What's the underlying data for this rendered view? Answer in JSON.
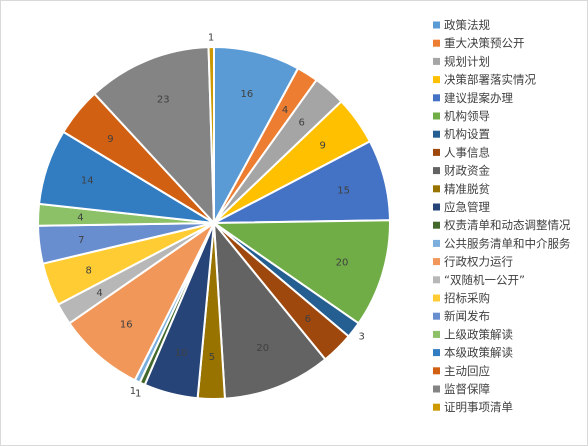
{
  "chart_data": {
    "type": "pie",
    "title": "",
    "legend_position": "right",
    "slices": [
      {
        "name": "政策法规",
        "value": 16,
        "color": "#5B9BD5"
      },
      {
        "name": "重大决策预公开",
        "value": 4,
        "color": "#ED7D31"
      },
      {
        "name": "规划计划",
        "value": 6,
        "color": "#A5A5A5"
      },
      {
        "name": "决策部署落实情况",
        "value": 9,
        "color": "#FFC000"
      },
      {
        "name": "建议提案办理",
        "value": 15,
        "color": "#4472C4"
      },
      {
        "name": "机构领导",
        "value": 20,
        "color": "#70AD47"
      },
      {
        "name": "机构设置",
        "value": 3,
        "color": "#255E91"
      },
      {
        "name": "人事信息",
        "value": 6,
        "color": "#9E480E"
      },
      {
        "name": "财政资金",
        "value": 20,
        "color": "#636363"
      },
      {
        "name": "精准脱贫",
        "value": 5,
        "color": "#997300"
      },
      {
        "name": "应急管理",
        "value": 10,
        "color": "#264478"
      },
      {
        "name": "权责清单和动态调整情况",
        "value": 1,
        "color": "#43682B"
      },
      {
        "name": "公共服务清单和中介服务",
        "value": 1,
        "color": "#7CAFDD"
      },
      {
        "name": "行政权力运行",
        "value": 16,
        "color": "#F1975A"
      },
      {
        "name": "“双随机一公开”",
        "value": 4,
        "color": "#B7B7B7"
      },
      {
        "name": "招标采购",
        "value": 8,
        "color": "#FFCD33"
      },
      {
        "name": "新闻发布",
        "value": 7,
        "color": "#698ED0"
      },
      {
        "name": "上级政策解读",
        "value": 4,
        "color": "#8CC168"
      },
      {
        "name": "本级政策解读",
        "value": 14,
        "color": "#327DC2"
      },
      {
        "name": "主动回应",
        "value": 9,
        "color": "#D26012"
      },
      {
        "name": "监督保障",
        "value": 23,
        "color": "#848484"
      },
      {
        "name": "证明事项清单",
        "value": 1,
        "color": "#CC9A00"
      }
    ]
  }
}
